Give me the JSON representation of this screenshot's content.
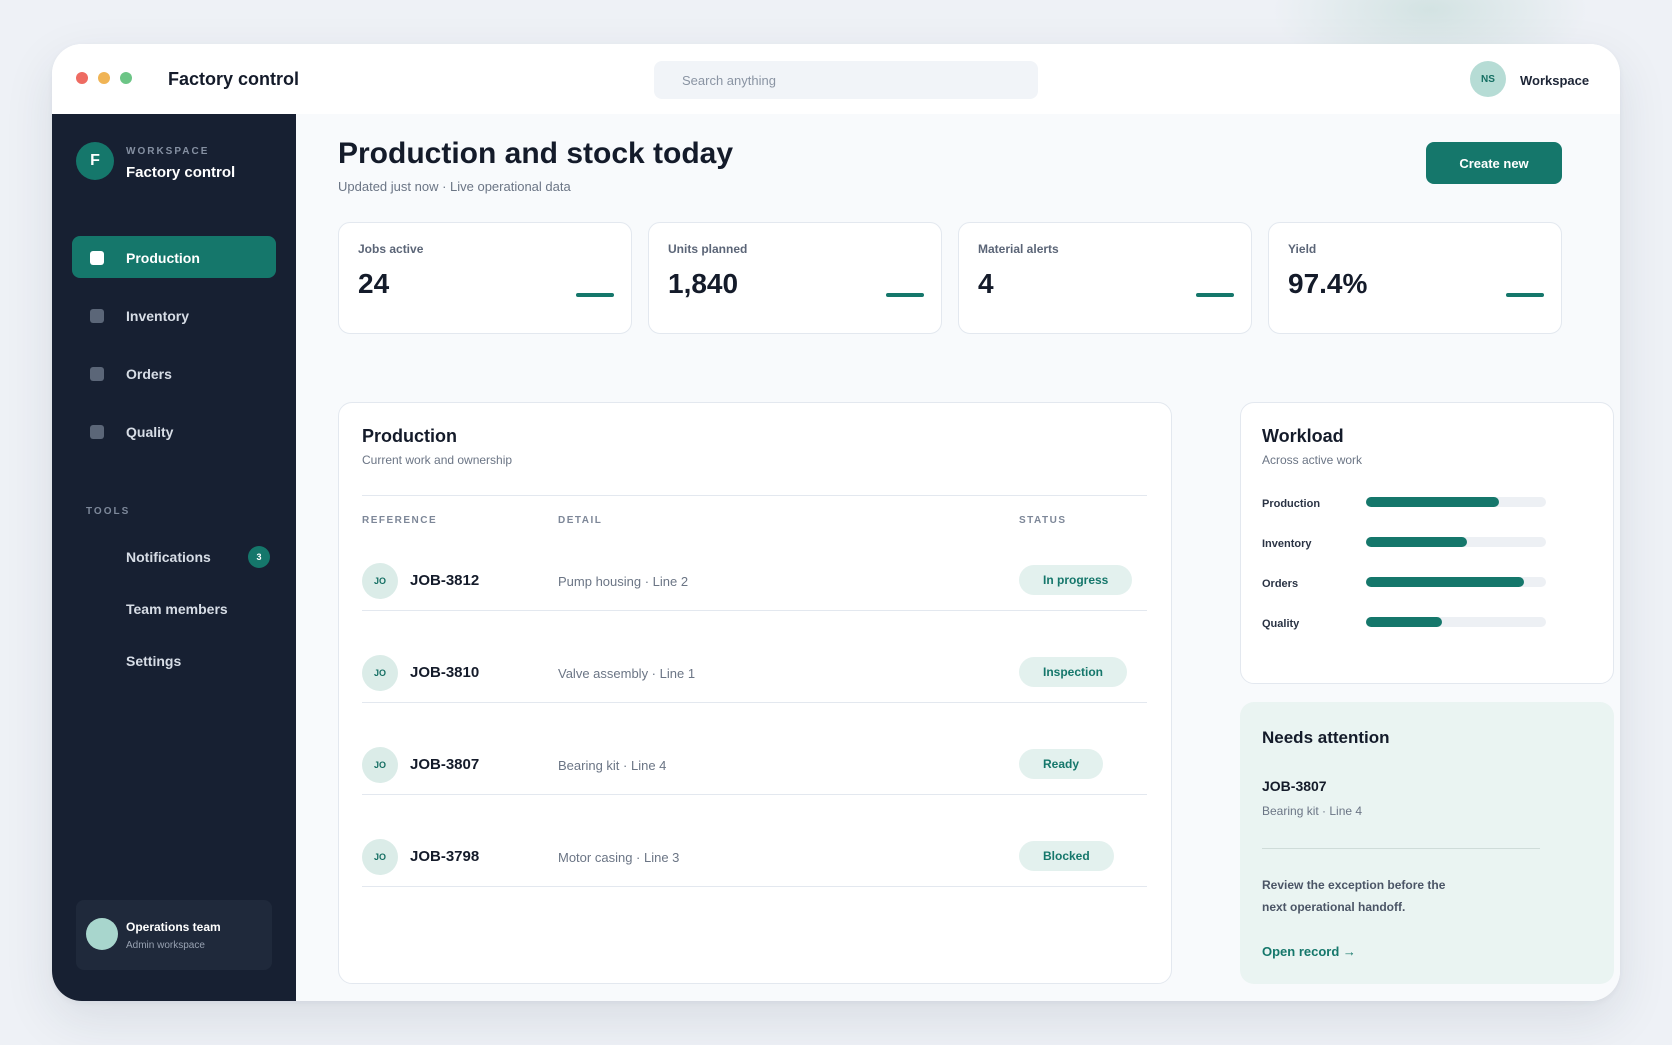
{
  "titlebar": {
    "app_title": "Factory control",
    "search_placeholder": "Search anything",
    "user_initials": "NS",
    "user_label": "Workspace"
  },
  "sidebar": {
    "workspace_initial": "F",
    "workspace_caption": "WORKSPACE",
    "workspace_name": "Factory control",
    "nav": [
      {
        "label": "Production",
        "active": true
      },
      {
        "label": "Inventory",
        "active": false
      },
      {
        "label": "Orders",
        "active": false
      },
      {
        "label": "Quality",
        "active": false
      }
    ],
    "tools_caption": "TOOLS",
    "tools": [
      {
        "label": "Notifications",
        "badge": "3"
      },
      {
        "label": "Team members"
      },
      {
        "label": "Settings"
      }
    ],
    "team": {
      "name": "Operations team",
      "role": "Admin workspace"
    }
  },
  "header": {
    "title": "Production and stock today",
    "subtitle": "Updated just now · Live operational data",
    "create_label": "Create new"
  },
  "stats": [
    {
      "label": "Jobs active",
      "value": "24"
    },
    {
      "label": "Units planned",
      "value": "1,840"
    },
    {
      "label": "Material alerts",
      "value": "4"
    },
    {
      "label": "Yield",
      "value": "97.4%"
    }
  ],
  "production": {
    "title": "Production",
    "subtitle": "Current work and ownership",
    "columns": {
      "reference": "REFERENCE",
      "detail": "DETAIL",
      "status": "STATUS"
    },
    "rows": [
      {
        "initials": "JO",
        "ref": "JOB-3812",
        "detail": "Pump housing · Line 2",
        "status": "In progress"
      },
      {
        "initials": "JO",
        "ref": "JOB-3810",
        "detail": "Valve assembly · Line 1",
        "status": "Inspection"
      },
      {
        "initials": "JO",
        "ref": "JOB-3807",
        "detail": "Bearing kit · Line 4",
        "status": "Ready"
      },
      {
        "initials": "JO",
        "ref": "JOB-3798",
        "detail": "Motor casing · Line 3",
        "status": "Blocked"
      }
    ]
  },
  "workload": {
    "title": "Workload",
    "subtitle": "Across active work",
    "items": [
      {
        "label": "Production",
        "fraction": 0.74
      },
      {
        "label": "Inventory",
        "fraction": 0.56
      },
      {
        "label": "Orders",
        "fraction": 0.88
      },
      {
        "label": "Quality",
        "fraction": 0.42
      }
    ]
  },
  "attention": {
    "title": "Needs attention",
    "ref": "JOB-3807",
    "detail": "Bearing kit · Line 4",
    "message": "Review the exception before the next operational handoff.",
    "link": "Open record →"
  },
  "colors": {
    "accent": "#15776b",
    "sidebar": "#172032",
    "pill_bg": "#e3f1ee"
  }
}
